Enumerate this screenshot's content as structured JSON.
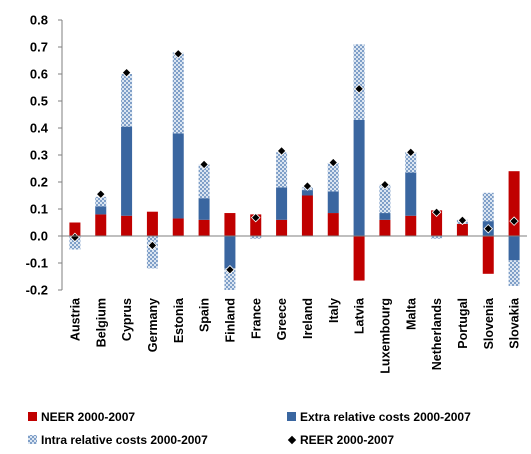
{
  "chart_data": {
    "type": "bar",
    "stacked": true,
    "categories": [
      "Austria",
      "Belgium",
      "Cyprus",
      "Germany",
      "Estonia",
      "Spain",
      "Finland",
      "France",
      "Greece",
      "Ireland",
      "Italy",
      "Latvia",
      "Luxembourg",
      "Malta",
      "Netherlands",
      "Portugal",
      "Slovenia",
      "Slovakia"
    ],
    "ylim": [
      -0.2,
      0.8
    ],
    "yticks": [
      -0.2,
      -0.1,
      0.0,
      0.1,
      0.2,
      0.3,
      0.4,
      0.5,
      0.6,
      0.7,
      0.8
    ],
    "grid": false,
    "legend_position": "bottom",
    "series": [
      {
        "name": "NEER 2000-2007",
        "kind": "bar",
        "color": "#c00000",
        "values": [
          0.05,
          0.08,
          0.075,
          0.09,
          0.065,
          0.06,
          0.085,
          0.08,
          0.06,
          0.15,
          0.085,
          -0.165,
          0.06,
          0.075,
          0.095,
          0.045,
          -0.14,
          0.24
        ]
      },
      {
        "name": "Extra relative costs 2000-2007",
        "kind": "bar",
        "color": "#3a66a0",
        "values": [
          0.0,
          0.03,
          0.33,
          0.0,
          0.315,
          0.08,
          -0.12,
          0.0,
          0.12,
          0.02,
          0.08,
          0.43,
          0.025,
          0.16,
          0.0,
          0.0,
          0.055,
          -0.09
        ]
      },
      {
        "name": "Intra relative costs 2000-2007",
        "kind": "bar",
        "color": "#9fb7d6",
        "values": [
          -0.05,
          0.035,
          0.195,
          -0.12,
          0.3,
          0.125,
          -0.08,
          -0.01,
          0.13,
          0.01,
          0.105,
          0.28,
          0.105,
          0.075,
          -0.01,
          0.015,
          0.105,
          -0.095
        ]
      },
      {
        "name": "REER 2000-2007",
        "kind": "marker",
        "color": "#000000",
        "values": [
          -0.005,
          0.155,
          0.605,
          -0.035,
          0.675,
          0.265,
          -0.125,
          0.068,
          0.315,
          0.185,
          0.272,
          0.545,
          0.19,
          0.31,
          0.088,
          0.058,
          0.027,
          0.055
        ]
      }
    ]
  }
}
